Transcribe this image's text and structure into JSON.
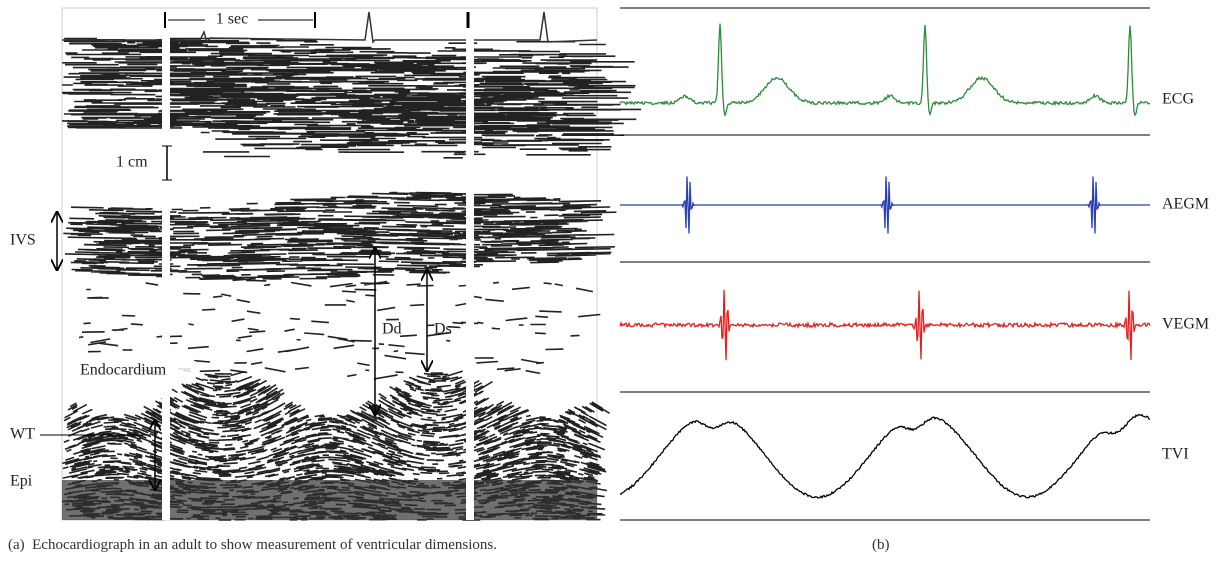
{
  "panel_a": {
    "time_scale": "1 sec",
    "depth_scale": "1 cm",
    "ivs": "IVS",
    "dd": "Dd",
    "ds": "Ds",
    "endocardium": "Endocardium",
    "wt": "WT",
    "epi": "Epi",
    "caption": "(a)  Echocardiograph in an adult to show measurement of ventricular dimensions."
  },
  "panel_b": {
    "traces": [
      "ECG",
      "AEGM",
      "VEGM",
      "TVI"
    ],
    "caption": "(b)"
  }
}
